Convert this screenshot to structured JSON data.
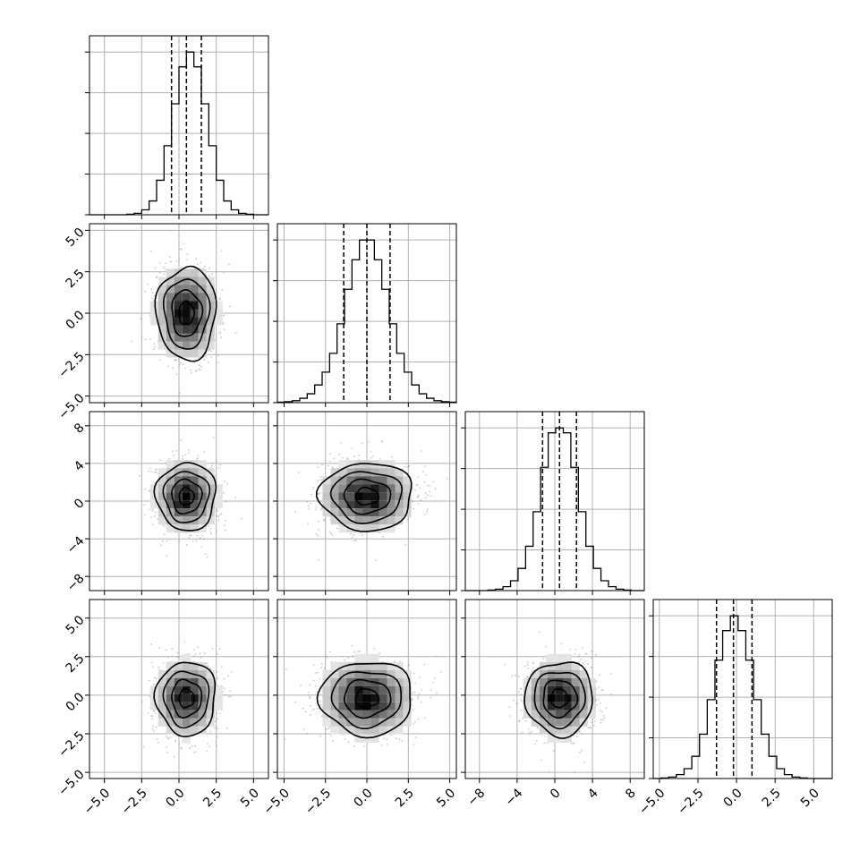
{
  "chart_data": {
    "type": "corner",
    "n_params": 4,
    "grid": true,
    "colors": {
      "line": "#000000",
      "grid": "#b0b0b0",
      "points": "#9a9a9a",
      "frame": "#000000"
    },
    "quantiles": [
      0.16,
      0.5,
      0.84
    ],
    "params": [
      {
        "range": [
          -6,
          6
        ],
        "ticks": [
          -5.0,
          -2.5,
          0.0,
          2.5,
          5.0
        ],
        "tick_labels": [
          "−5.0",
          "−2.5",
          "0.0",
          "2.5",
          "5.0"
        ],
        "mean": 0.5,
        "sd": 1.0,
        "quantile_values": [
          -0.5,
          0.5,
          1.5
        ],
        "hist_bins": [
          -6,
          -5.5,
          -5,
          -4.5,
          -4,
          -3.5,
          -3,
          -2.5,
          -2,
          -1.5,
          -1,
          -0.5,
          0,
          0.5,
          1,
          1.5,
          2,
          2.5,
          3,
          3.5,
          4,
          4.5,
          5,
          5.5,
          6
        ],
        "hist_counts": [
          0,
          0,
          0,
          0,
          0,
          1,
          3,
          10,
          28,
          70,
          140,
          225,
          300,
          330,
          300,
          225,
          140,
          70,
          28,
          10,
          3,
          1,
          0,
          0
        ]
      },
      {
        "range": [
          -5.4,
          5.4
        ],
        "ticks": [
          -5.0,
          -2.5,
          0.0,
          2.5,
          5.0
        ],
        "tick_labels": [
          "−5.0",
          "−2.5",
          "0.0",
          "2.5",
          "5.0"
        ],
        "mean": 0.0,
        "sd": 1.4,
        "quantile_values": [
          -1.4,
          0.0,
          1.4
        ],
        "hist_bins": [
          -5.4,
          -4.95,
          -4.5,
          -4.05,
          -3.6,
          -3.15,
          -2.7,
          -2.25,
          -1.8,
          -1.35,
          -0.9,
          -0.45,
          0,
          0.45,
          0.9,
          1.35,
          1.8,
          2.25,
          2.7,
          3.15,
          3.6,
          4.05,
          4.5,
          4.95,
          5.4
        ],
        "hist_counts": [
          1,
          2,
          4,
          9,
          18,
          36,
          62,
          100,
          160,
          230,
          290,
          330,
          330,
          290,
          230,
          160,
          100,
          62,
          36,
          18,
          9,
          4,
          2,
          1
        ]
      },
      {
        "range": [
          -9.5,
          9.5
        ],
        "ticks": [
          -8,
          -4,
          0,
          4,
          8
        ],
        "tick_labels": [
          "−8",
          "−4",
          "0",
          "4",
          "8"
        ],
        "mean": 0.5,
        "sd": 1.8,
        "quantile_values": [
          -1.3,
          0.5,
          2.3
        ],
        "hist_bins": [
          -9.5,
          -8.7,
          -7.9,
          -7.1,
          -6.3,
          -5.5,
          -4.7,
          -3.9,
          -3.1,
          -2.3,
          -1.5,
          -0.7,
          0.1,
          0.9,
          1.7,
          2.5,
          3.3,
          4.1,
          4.9,
          5.7,
          6.5,
          7.3,
          8.1,
          8.9,
          9.5
        ],
        "hist_counts": [
          0,
          0,
          0,
          1,
          3,
          8,
          20,
          45,
          90,
          160,
          250,
          320,
          330,
          320,
          250,
          160,
          90,
          45,
          20,
          8,
          3,
          1,
          0,
          0
        ]
      },
      {
        "range": [
          -5.4,
          6.2
        ],
        "ticks": [
          -5.0,
          -2.5,
          0.0,
          2.5,
          5.0
        ],
        "tick_labels": [
          "−5.0",
          "−2.5",
          "0.0",
          "2.5",
          "5.0"
        ],
        "mean": -0.2,
        "sd": 1.2,
        "quantile_values": [
          -1.3,
          -0.2,
          1.0
        ],
        "hist_bins": [
          -5.4,
          -4.9,
          -4.4,
          -3.9,
          -3.4,
          -2.9,
          -2.4,
          -1.9,
          -1.4,
          -0.9,
          -0.4,
          0.1,
          0.6,
          1.1,
          1.6,
          2.1,
          2.6,
          3.1,
          3.6,
          4.1,
          4.6,
          5.1,
          5.6,
          6.2
        ],
        "hist_counts": [
          0,
          1,
          3,
          8,
          20,
          45,
          90,
          160,
          240,
          300,
          330,
          300,
          240,
          160,
          90,
          45,
          20,
          8,
          3,
          1,
          0,
          0,
          0
        ]
      }
    ],
    "hist2d": {
      "n_points": 900,
      "levels_sigma": [
        0.5,
        1.0,
        1.5,
        2.0
      ]
    }
  }
}
